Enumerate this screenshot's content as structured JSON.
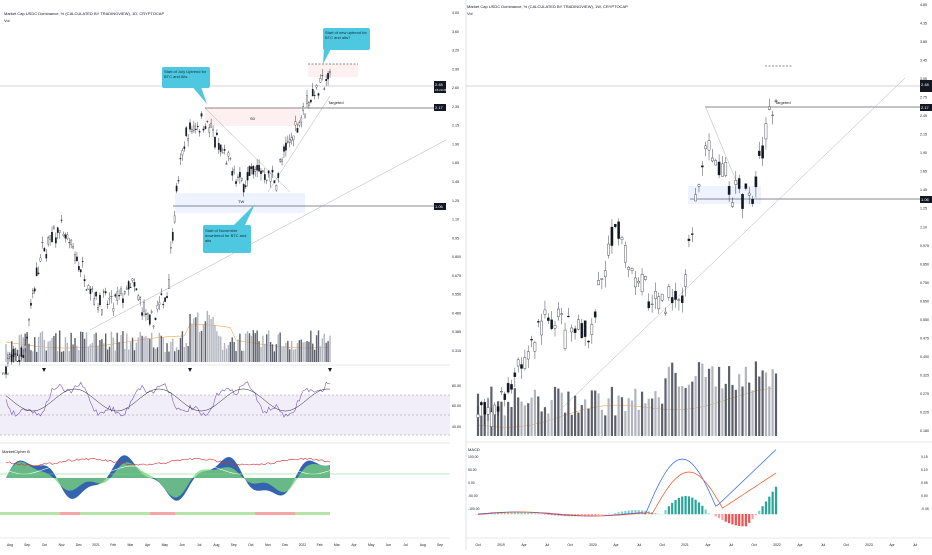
{
  "left": {
    "title": "Market Cap USDC Dominance, % (CALCULATED BY TRADINGVIEW), 1D, CRYPTOCAP",
    "vol_label": "Vol",
    "y_ticks": [
      "4.00",
      "3.60",
      "3.20",
      "2.90",
      "2.60",
      "2.35",
      "2.15",
      "1.90",
      "1.65",
      "1.45",
      "1.25",
      "1.10",
      "0.95",
      "0.800",
      "0.675",
      "0.550",
      "0.460",
      "0.385",
      "0.315"
    ],
    "price_tags": [
      {
        "text": "2.48",
        "sub": "15:23:28"
      },
      {
        "text": "2.17"
      },
      {
        "text": "1.06"
      }
    ],
    "zone_labels": [
      "S0",
      "TW"
    ],
    "targeted_label": "Targeted",
    "callouts": [
      "Start of new uptrend for BTC and alts?",
      "Start of July Uptrend for BTC and Alts",
      "Start of November downtrend for BTC and alts"
    ],
    "rsi_label": "RSI",
    "rsi_ticks": [
      "80.00",
      "60.00",
      "40.00"
    ],
    "cycle_label": "MarketCipher B",
    "x_ticks": [
      "Aug",
      "Sep",
      "Oct",
      "Nov",
      "Dec",
      "2021",
      "Feb",
      "Mar",
      "Apr",
      "May",
      "Jun",
      "Jul",
      "Aug",
      "Sep",
      "Oct",
      "Nov",
      "Dec",
      "2022",
      "Feb",
      "Mar",
      "Apr",
      "May",
      "Jun",
      "Jul",
      "Aug",
      "Sep"
    ]
  },
  "right": {
    "title": "Market Cap USDC Dominance, % (CALCULATED BY TRADINGVIEW), 1W, CRYPTOCAP",
    "vol_label": "Vol",
    "y_ticks": [
      "4.85",
      "4.35",
      "3.85",
      "3.45",
      "3.05",
      "2.75",
      "2.45",
      "2.15",
      "1.90",
      "1.65",
      "1.45",
      "1.25",
      "1.10",
      "0.975",
      "0.850",
      "0.750",
      "0.650",
      "0.550",
      "0.475",
      "0.400",
      "0.325",
      "0.275",
      "0.225",
      "0.180"
    ],
    "price_tags": [
      {
        "text": "2.48"
      },
      {
        "text": "2.17"
      },
      {
        "text": "1.06"
      }
    ],
    "targeted_label": "Targeted",
    "macd_label": "MACD",
    "macd_ticks": [
      "100.00",
      "50.00",
      "0.00",
      "-50.00",
      "-100.00"
    ],
    "macd_right_ticks": [
      "0.15",
      "0.10",
      "0.05",
      "0.00",
      "-0.05"
    ],
    "x_ticks": [
      "Oct",
      "2019",
      "Apr",
      "Jul",
      "Oct",
      "2020",
      "Apr",
      "Jul",
      "Oct",
      "2021",
      "Apr",
      "Jul",
      "Oct",
      "2022",
      "Apr",
      "Jul",
      "Oct",
      "2023",
      "Apr",
      "Jul"
    ]
  },
  "chart_data": [
    {
      "type": "candlestick",
      "title": "Market Cap USDC Dominance, % (CALCULATED BY TRADINGVIEW), 1D, CRYPTOCAP",
      "x": [
        "Aug",
        "Sep",
        "Oct",
        "Nov",
        "Dec",
        "2021",
        "Feb",
        "Mar",
        "Apr",
        "May",
        "Jun",
        "Jul",
        "Aug",
        "Sep",
        "Oct",
        "Nov",
        "Dec",
        "2022",
        "Feb"
      ],
      "close": [
        0.29,
        0.31,
        0.66,
        0.8,
        0.62,
        0.47,
        0.45,
        0.52,
        0.38,
        0.5,
        1.6,
        1.82,
        1.4,
        1.12,
        1.25,
        1.15,
        1.65,
        2.2,
        2.48
      ],
      "levels": [
        2.48,
        2.17,
        1.06
      ],
      "indicators": [
        "Vol",
        "RSI",
        "MarketCipher B"
      ]
    },
    {
      "type": "candlestick",
      "title": "Market Cap USDC Dominance, % (CALCULATED BY TRADINGVIEW), 1W, CRYPTOCAP",
      "x": [
        "Oct",
        "2019",
        "Apr",
        "Jul",
        "Oct",
        "2020",
        "Apr",
        "Jul",
        "Oct",
        "2021",
        "Apr",
        "Jul",
        "Oct",
        "2022"
      ],
      "close": [
        0.2,
        0.22,
        0.3,
        0.45,
        0.38,
        0.4,
        0.85,
        0.55,
        0.5,
        0.52,
        1.6,
        1.2,
        1.1,
        2.48
      ],
      "levels": [
        2.48,
        2.17,
        1.06
      ],
      "indicators": [
        "Vol",
        "MACD"
      ]
    }
  ]
}
